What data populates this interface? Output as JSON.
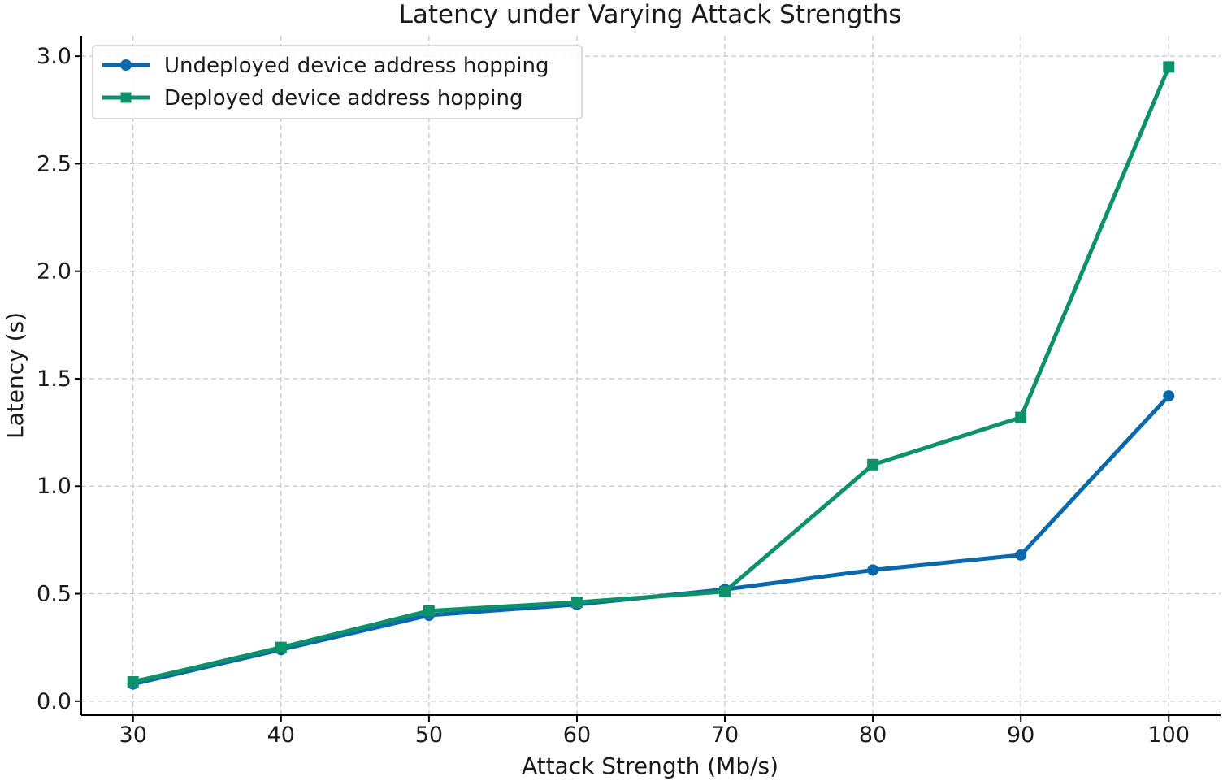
{
  "chart_data": {
    "type": "line",
    "title": "Latency under Varying Attack Strengths",
    "xlabel": "Attack Strength (Mb/s)",
    "ylabel": "Latency (s)",
    "x": [
      30,
      40,
      50,
      60,
      70,
      80,
      90,
      100
    ],
    "x_tick_labels": [
      "30",
      "40",
      "50",
      "60",
      "70",
      "80",
      "90",
      "100"
    ],
    "y_tick_labels": [
      "0.0",
      "0.5",
      "1.0",
      "1.5",
      "2.0",
      "2.5",
      "3.0"
    ],
    "y_ticks": [
      0.0,
      0.5,
      1.0,
      1.5,
      2.0,
      2.5,
      3.0
    ],
    "xlim": [
      26.5,
      103.5
    ],
    "ylim": [
      -0.065,
      3.095
    ],
    "grid": true,
    "legend_position": "top-left",
    "series": [
      {
        "name": "Undeployed device address hopping",
        "color": "#0a68ad",
        "marker": "circle",
        "values": [
          0.08,
          0.24,
          0.4,
          0.45,
          0.52,
          0.61,
          0.68,
          1.42
        ]
      },
      {
        "name": "Deployed device address hopping",
        "color": "#0c9168",
        "marker": "square",
        "values": [
          0.09,
          0.25,
          0.42,
          0.46,
          0.51,
          1.1,
          1.32,
          2.95
        ]
      }
    ]
  }
}
